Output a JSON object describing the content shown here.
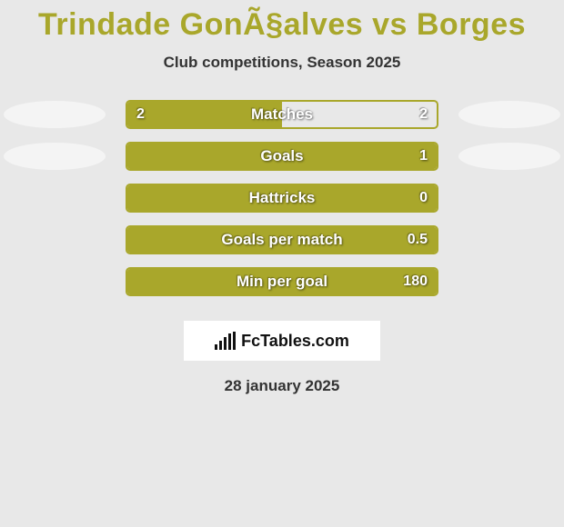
{
  "title": "Trindade GonÃ§alves vs Borges",
  "title_color": "#a9a72b",
  "subtitle": "Club competitions, Season 2025",
  "subtitle_color": "#333333",
  "background_color": "#e8e8e8",
  "accent": "#a9a72b",
  "ellipse_color": "#f4f4f4",
  "bar_border_color": "#a9a72b",
  "bar_fill_color": "#a9a72b",
  "rows": [
    {
      "label": "Matches",
      "left": "2",
      "right": "2",
      "fill_pct": 50,
      "show_ellipses": true
    },
    {
      "label": "Goals",
      "left": "",
      "right": "1",
      "fill_pct": 100,
      "show_ellipses": true
    },
    {
      "label": "Hattricks",
      "left": "",
      "right": "0",
      "fill_pct": 100,
      "show_ellipses": false
    },
    {
      "label": "Goals per match",
      "left": "",
      "right": "0.5",
      "fill_pct": 100,
      "show_ellipses": false
    },
    {
      "label": "Min per goal",
      "left": "",
      "right": "180",
      "fill_pct": 100,
      "show_ellipses": false
    }
  ],
  "logo_text": "FcTables.com",
  "footer_date": "28 january 2025",
  "footer_color": "#333333"
}
